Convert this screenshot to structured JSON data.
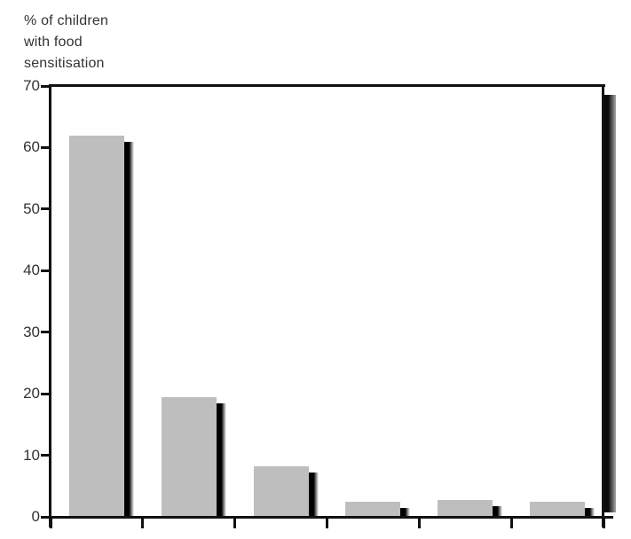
{
  "figure": {
    "y_axis_title_lines": [
      "% of children",
      "with food",
      "sensitisation"
    ]
  },
  "chart_data": {
    "type": "bar",
    "title": "",
    "ylabel": "% of children with food sensitisation",
    "xlabel": "",
    "categories": [
      "",
      "",
      "",
      "",
      "",
      ""
    ],
    "values": [
      62,
      19.5,
      8.2,
      2.4,
      2.7,
      2.4
    ],
    "ylim": [
      0,
      70
    ],
    "yticks": [
      0,
      10,
      20,
      30,
      40,
      50,
      60,
      70
    ],
    "x_tick_count": 7,
    "x_tick_labels_visible": false,
    "grid": false,
    "legend": false,
    "style": {
      "effect": "3d-drop-shadow",
      "background": "#ffffff",
      "text": "#333333",
      "bar_fill": "#bebebe",
      "bar_shadow": "#000000",
      "frame": "#111111",
      "right_panel_gradient_start": "#0a0a0a",
      "right_panel_gradient_end": "#aaaaaa"
    }
  }
}
